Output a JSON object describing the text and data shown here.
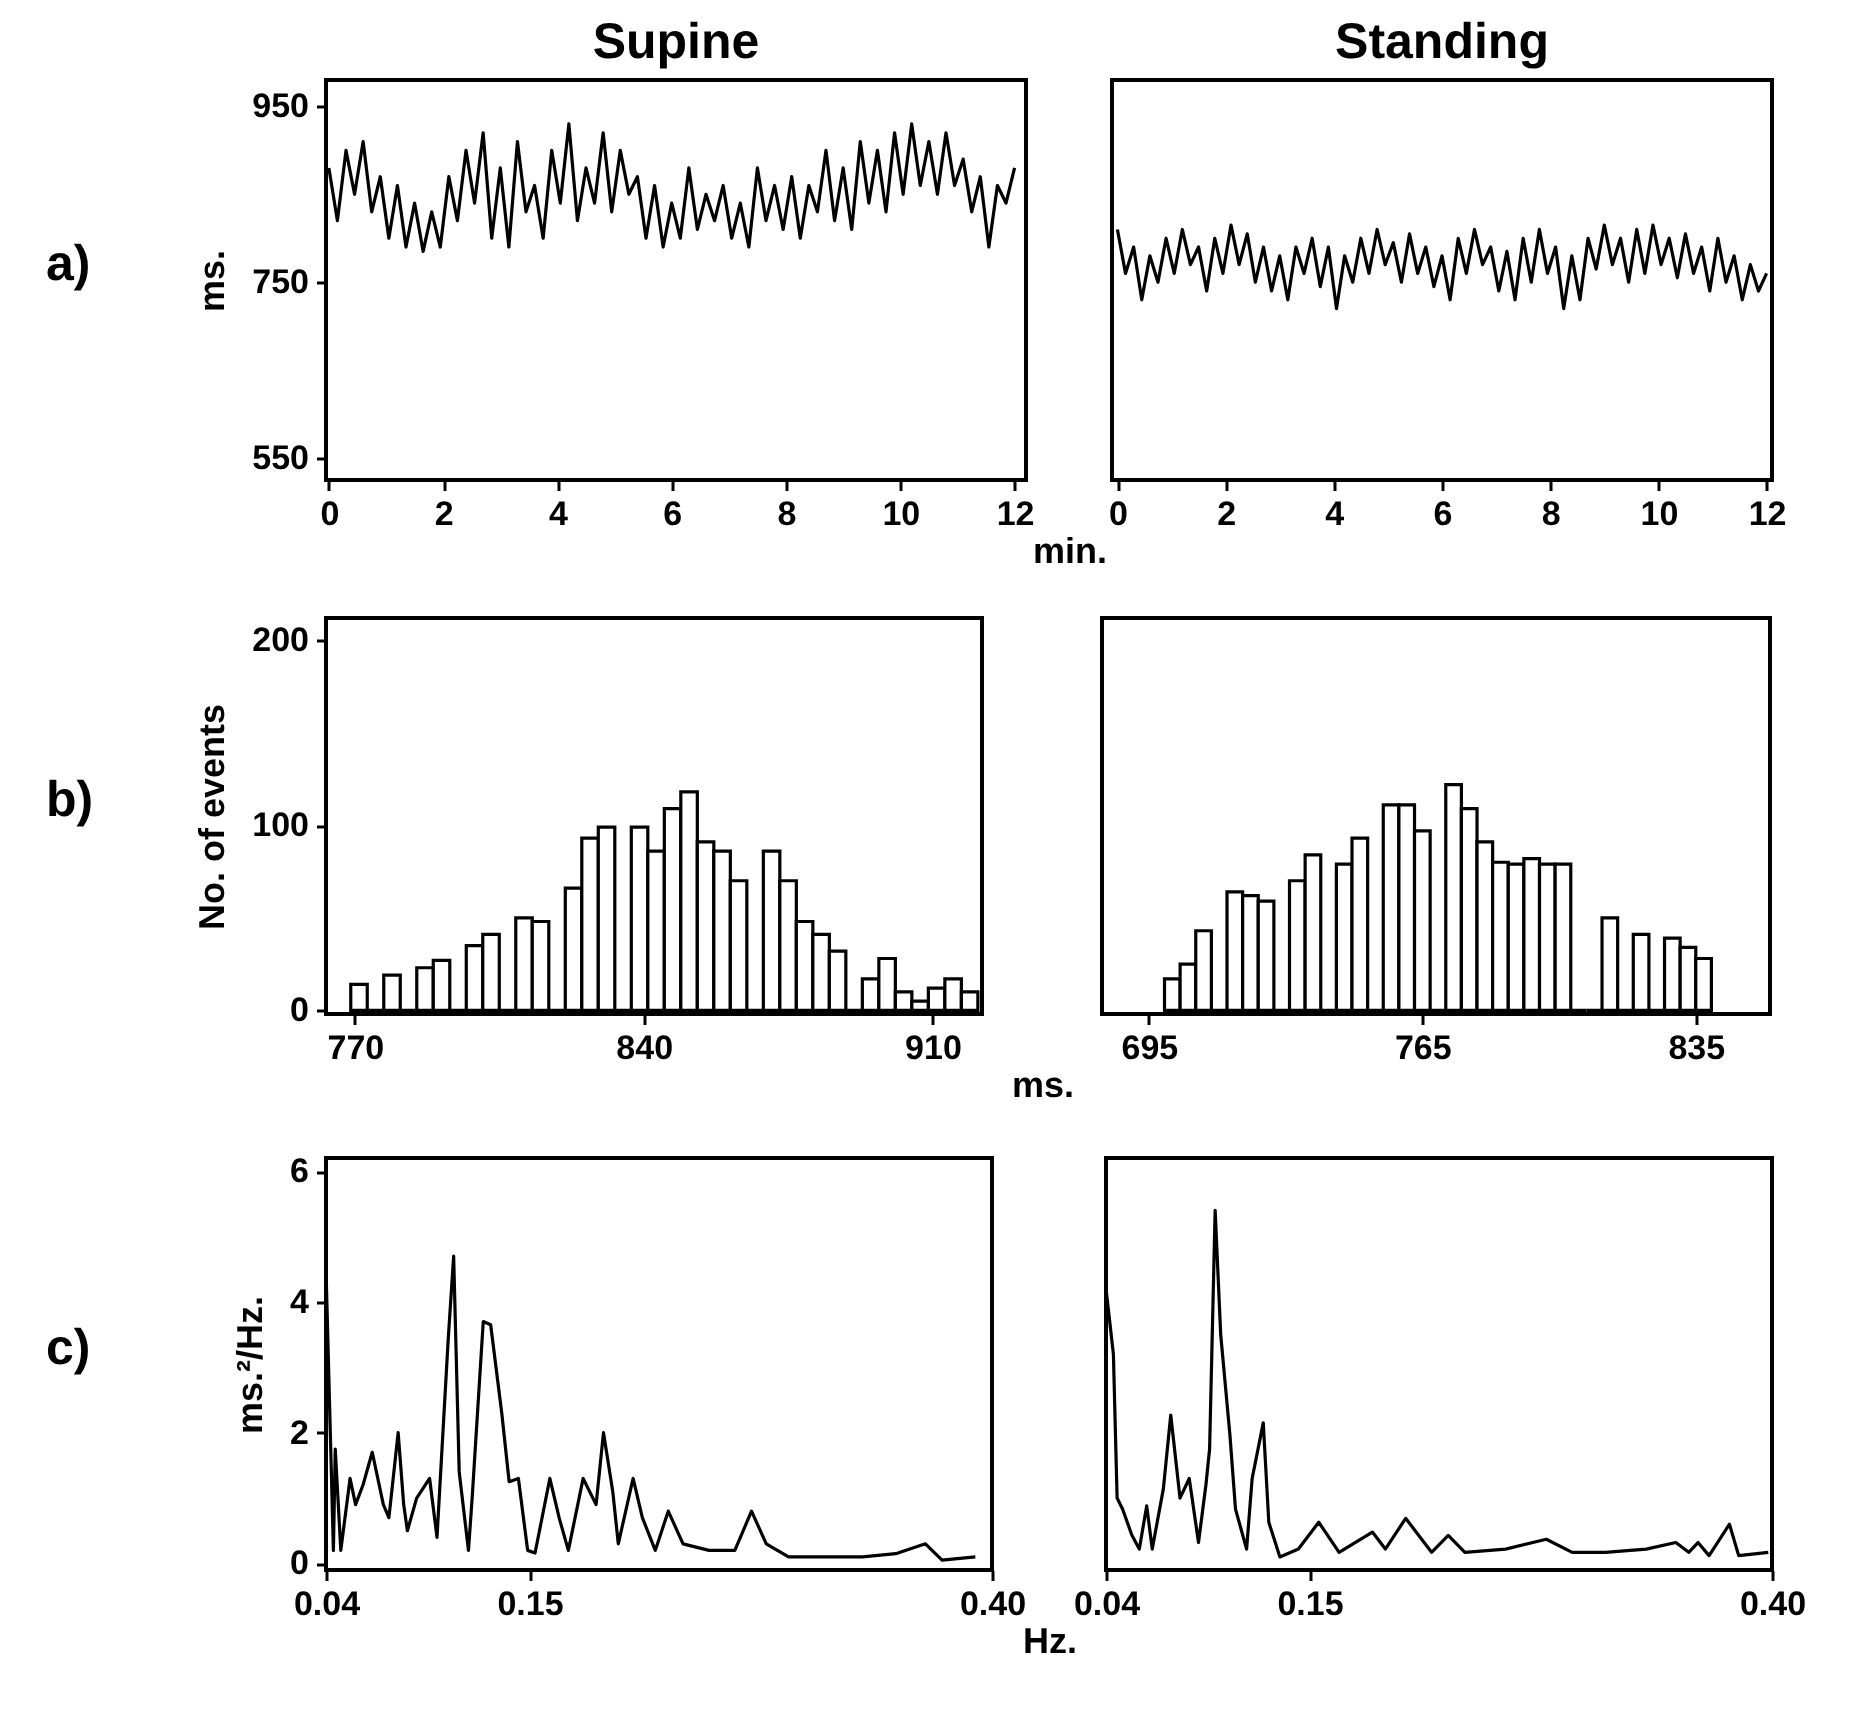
{
  "chart_data": [
    {
      "type": "line",
      "title": "Supine",
      "xlabel": "min.",
      "ylabel": "ms.",
      "annotations": [
        "a)"
      ],
      "xlim": [
        -0.05,
        12.2
      ],
      "xticks": [
        0,
        2,
        4,
        6,
        8,
        10,
        12
      ],
      "ylim": [
        525,
        980
      ],
      "yticks": [
        550,
        750,
        950
      ],
      "x": [
        0,
        0.15,
        0.3,
        0.45,
        0.6,
        0.75,
        0.9,
        1.05,
        1.2,
        1.35,
        1.5,
        1.65,
        1.8,
        1.95,
        2.1,
        2.25,
        2.4,
        2.55,
        2.7,
        2.85,
        3,
        3.15,
        3.3,
        3.45,
        3.6,
        3.75,
        3.9,
        4.05,
        4.2,
        4.35,
        4.5,
        4.65,
        4.8,
        4.95,
        5.1,
        5.25,
        5.4,
        5.55,
        5.7,
        5.85,
        6,
        6.15,
        6.3,
        6.45,
        6.6,
        6.75,
        6.9,
        7.05,
        7.2,
        7.35,
        7.5,
        7.65,
        7.8,
        7.95,
        8.1,
        8.25,
        8.4,
        8.55,
        8.7,
        8.85,
        9,
        9.15,
        9.3,
        9.45,
        9.6,
        9.75,
        9.9,
        10.05,
        10.2,
        10.35,
        10.5,
        10.65,
        10.8,
        10.95,
        11.1,
        11.25,
        11.4,
        11.55,
        11.7,
        11.85,
        12
      ],
      "series": [
        {
          "color": "#000000",
          "values": [
            880,
            820,
            900,
            850,
            910,
            830,
            870,
            800,
            860,
            790,
            840,
            785,
            830,
            790,
            870,
            820,
            900,
            840,
            920,
            800,
            880,
            790,
            910,
            830,
            860,
            800,
            900,
            840,
            930,
            820,
            880,
            840,
            920,
            830,
            900,
            850,
            870,
            800,
            860,
            790,
            840,
            800,
            880,
            810,
            850,
            820,
            860,
            800,
            840,
            790,
            880,
            820,
            860,
            810,
            870,
            800,
            860,
            830,
            900,
            820,
            880,
            810,
            910,
            840,
            900,
            830,
            920,
            850,
            930,
            860,
            910,
            850,
            920,
            860,
            890,
            830,
            870,
            790,
            860,
            840,
            880
          ]
        }
      ]
    },
    {
      "type": "line",
      "title": "Standing",
      "tick_labels": "x",
      "xlim": [
        -0.1,
        12.1
      ],
      "xticks": [
        0,
        2,
        4,
        6,
        8,
        10,
        12
      ],
      "ylim": [
        525,
        980
      ],
      "x": [
        0,
        0.15,
        0.3,
        0.45,
        0.6,
        0.75,
        0.9,
        1.05,
        1.2,
        1.35,
        1.5,
        1.65,
        1.8,
        1.95,
        2.1,
        2.25,
        2.4,
        2.55,
        2.7,
        2.85,
        3,
        3.15,
        3.3,
        3.45,
        3.6,
        3.75,
        3.9,
        4.05,
        4.2,
        4.35,
        4.5,
        4.65,
        4.8,
        4.95,
        5.1,
        5.25,
        5.4,
        5.55,
        5.7,
        5.85,
        6,
        6.15,
        6.3,
        6.45,
        6.6,
        6.75,
        6.9,
        7.05,
        7.2,
        7.35,
        7.5,
        7.65,
        7.8,
        7.95,
        8.1,
        8.25,
        8.4,
        8.55,
        8.7,
        8.85,
        9,
        9.15,
        9.3,
        9.45,
        9.6,
        9.75,
        9.9,
        10.05,
        10.2,
        10.35,
        10.5,
        10.65,
        10.8,
        10.95,
        11.1,
        11.25,
        11.4,
        11.55,
        11.7,
        11.85,
        12
      ],
      "series": [
        {
          "color": "#000000",
          "values": [
            810,
            760,
            790,
            730,
            780,
            750,
            800,
            760,
            810,
            770,
            790,
            740,
            800,
            760,
            815,
            770,
            805,
            750,
            790,
            740,
            780,
            730,
            790,
            760,
            800,
            745,
            790,
            720,
            780,
            750,
            800,
            760,
            810,
            770,
            795,
            750,
            805,
            760,
            790,
            745,
            780,
            730,
            800,
            760,
            810,
            770,
            790,
            740,
            785,
            730,
            800,
            750,
            810,
            760,
            790,
            720,
            780,
            730,
            800,
            765,
            815,
            770,
            800,
            750,
            810,
            760,
            815,
            770,
            800,
            755,
            805,
            760,
            790,
            740,
            800,
            750,
            780,
            730,
            770,
            740,
            760
          ]
        }
      ]
    },
    {
      "type": "histogram",
      "xlabel": "ms.",
      "ylabel": "No. of events",
      "annotations": [
        "b)"
      ],
      "xlim": [
        763,
        922
      ],
      "xticks": [
        770,
        840,
        910
      ],
      "ylim": [
        -2,
        212
      ],
      "yticks": [
        0,
        100,
        200
      ],
      "color": "#000000",
      "bins": [
        769,
        773,
        777,
        781,
        785,
        789,
        793,
        797,
        801,
        805,
        809,
        813,
        817,
        821,
        825,
        829,
        833,
        837,
        841,
        845,
        849,
        853,
        857,
        861,
        865,
        869,
        873,
        877,
        881,
        885,
        889,
        893,
        897,
        901,
        905,
        909,
        913,
        917,
        921
      ],
      "values": [
        14,
        0,
        19,
        0,
        23,
        27,
        0,
        35,
        41,
        0,
        50,
        48,
        0,
        66,
        93,
        99,
        0,
        99,
        86,
        109,
        118,
        91,
        86,
        70,
        0,
        86,
        70,
        48,
        41,
        32,
        0,
        17,
        28,
        10,
        5,
        12,
        17,
        10
      ]
    },
    {
      "type": "histogram",
      "tick_labels": "x",
      "xlim": [
        683,
        854
      ],
      "xticks": [
        695,
        765,
        835
      ],
      "ylim": [
        -2,
        212
      ],
      "color": "#000000",
      "bins": [
        699,
        703,
        707,
        711,
        715,
        719,
        723,
        727,
        731,
        735,
        739,
        743,
        747,
        751,
        755,
        759,
        763,
        767,
        771,
        775,
        779,
        783,
        787,
        791,
        795,
        799,
        803,
        807,
        811,
        815,
        819,
        823,
        827,
        831,
        835,
        839
      ],
      "values": [
        17,
        25,
        43,
        0,
        64,
        62,
        59,
        0,
        70,
        84,
        0,
        79,
        93,
        0,
        111,
        111,
        97,
        0,
        122,
        109,
        91,
        80,
        79,
        82,
        79,
        79,
        0,
        0,
        50,
        0,
        41,
        0,
        39,
        34,
        28
      ]
    },
    {
      "type": "line",
      "xlabel": "Hz.",
      "ylabel": "ms.²/Hz.",
      "annotations": [
        "c)"
      ],
      "xlim": [
        0.04,
        0.4
      ],
      "xticks": [
        0.04,
        0.15,
        {
          "value": 0.4,
          "label": "0.40"
        }
      ],
      "ylim": [
        -0.1,
        6.2
      ],
      "yticks": [
        0,
        2,
        4,
        6
      ],
      "x": [
        0.04,
        0.044,
        0.045,
        0.048,
        0.053,
        0.056,
        0.06,
        0.065,
        0.071,
        0.074,
        0.079,
        0.082,
        0.084,
        0.089,
        0.096,
        0.1,
        0.106,
        0.109,
        0.112,
        0.117,
        0.119,
        0.125,
        0.129,
        0.135,
        0.139,
        0.144,
        0.149,
        0.153,
        0.161,
        0.166,
        0.171,
        0.179,
        0.186,
        0.19,
        0.195,
        0.198,
        0.206,
        0.211,
        0.218,
        0.225,
        0.233,
        0.247,
        0.261,
        0.27,
        0.278,
        0.29,
        0.312,
        0.33,
        0.348,
        0.364,
        0.373,
        0.391
      ],
      "series": [
        {
          "color": "#000000",
          "values": [
            4.5,
            0.2,
            1.75,
            0.2,
            1.3,
            0.9,
            1.2,
            1.7,
            0.9,
            0.7,
            2.0,
            0.9,
            0.5,
            1.0,
            1.3,
            0.4,
            3.4,
            4.7,
            1.4,
            0.2,
            1.0,
            3.7,
            3.65,
            2.3,
            1.25,
            1.3,
            0.2,
            0.16,
            1.3,
            0.7,
            0.2,
            1.3,
            0.9,
            2.0,
            1.1,
            0.3,
            1.3,
            0.7,
            0.2,
            0.8,
            0.3,
            0.2,
            0.2,
            0.8,
            0.3,
            0.1,
            0.1,
            0.1,
            0.15,
            0.3,
            0.05,
            0.1
          ]
        }
      ]
    },
    {
      "type": "line",
      "tick_labels": "x",
      "xlim": [
        0.04,
        0.4
      ],
      "xticks": [
        0.04,
        0.15,
        {
          "value": 0.4,
          "label": "0.40"
        }
      ],
      "ylim": [
        -0.1,
        6.2
      ],
      "x": [
        0.04,
        0.044,
        0.046,
        0.049,
        0.054,
        0.058,
        0.062,
        0.065,
        0.071,
        0.075,
        0.08,
        0.085,
        0.09,
        0.094,
        0.096,
        0.099,
        0.102,
        0.107,
        0.11,
        0.116,
        0.119,
        0.125,
        0.128,
        0.134,
        0.144,
        0.155,
        0.166,
        0.184,
        0.191,
        0.202,
        0.216,
        0.225,
        0.234,
        0.256,
        0.278,
        0.292,
        0.31,
        0.332,
        0.348,
        0.355,
        0.36,
        0.366,
        0.377,
        0.382,
        0.398
      ],
      "series": [
        {
          "color": "#000000",
          "values": [
            4.2,
            3.2,
            1.0,
            0.83,
            0.43,
            0.22,
            0.88,
            0.22,
            1.14,
            2.27,
            1.0,
            1.3,
            0.32,
            1.2,
            1.75,
            5.4,
            3.5,
            1.96,
            0.83,
            0.22,
            1.3,
            2.15,
            0.63,
            0.1,
            0.22,
            0.63,
            0.17,
            0.48,
            0.22,
            0.69,
            0.17,
            0.43,
            0.17,
            0.22,
            0.37,
            0.17,
            0.17,
            0.22,
            0.32,
            0.17,
            0.32,
            0.12,
            0.6,
            0.12,
            0.17
          ]
        }
      ]
    }
  ]
}
